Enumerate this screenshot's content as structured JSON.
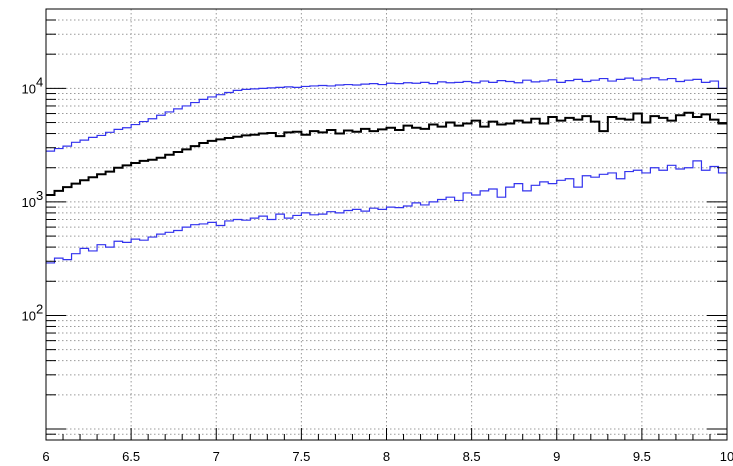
{
  "chart_data": {
    "type": "line",
    "style": "step-histogram",
    "title": "",
    "xlabel": "",
    "ylabel": "",
    "xlim": [
      6,
      10
    ],
    "ylim": [
      8,
      50000
    ],
    "yscale": "log",
    "grid": true,
    "x_ticks": [
      {
        "value": 6,
        "label": "6"
      },
      {
        "value": 6.5,
        "label": "6.5"
      },
      {
        "value": 7,
        "label": "7"
      },
      {
        "value": 7.5,
        "label": "7.5"
      },
      {
        "value": 8,
        "label": "8"
      },
      {
        "value": 8.5,
        "label": "8.5"
      },
      {
        "value": 9,
        "label": "9"
      },
      {
        "value": 9.5,
        "label": "9.5"
      },
      {
        "value": 10,
        "label": "10"
      }
    ],
    "y_ticks": [
      {
        "value": 100,
        "base": "10",
        "exp": "2"
      },
      {
        "value": 1000,
        "base": "10",
        "exp": "3"
      },
      {
        "value": 10000,
        "base": "10",
        "exp": "4"
      }
    ],
    "bin_width": 0.05,
    "series": [
      {
        "color": "#3333ee",
        "values": [
          2800,
          2950,
          3100,
          3350,
          3500,
          3700,
          3850,
          4100,
          4350,
          4500,
          4800,
          5100,
          5400,
          5800,
          6200,
          6600,
          7000,
          7500,
          8000,
          8400,
          8800,
          9200,
          9600,
          9800,
          9900,
          10000,
          10100,
          10200,
          10300,
          10200,
          10400,
          10500,
          10600,
          10500,
          10700,
          10800,
          10700,
          10900,
          11000,
          10800,
          11100,
          11000,
          11200,
          11100,
          11300,
          11000,
          11400,
          11200,
          11300,
          11500,
          11200,
          11600,
          11300,
          11700,
          11500,
          11200,
          11800,
          11400,
          11600,
          11900,
          11300,
          11700,
          12000,
          11500,
          11800,
          12200,
          11600,
          12000,
          12300,
          11800,
          12100,
          12400,
          11900,
          12200,
          11500,
          11800,
          12000,
          11300,
          11600,
          10000
        ]
      },
      {
        "color": "#000000",
        "values": [
          1150,
          1250,
          1350,
          1450,
          1550,
          1650,
          1750,
          1850,
          2000,
          2100,
          2200,
          2300,
          2350,
          2450,
          2600,
          2750,
          2900,
          3100,
          3300,
          3450,
          3550,
          3650,
          3750,
          3850,
          3900,
          4000,
          4050,
          3800,
          4100,
          4150,
          3900,
          4200,
          4100,
          4300,
          4000,
          4250,
          4150,
          4400,
          4200,
          4350,
          4500,
          4300,
          4700,
          4500,
          4400,
          4800,
          4600,
          5000,
          4700,
          4900,
          5200,
          4600,
          5100,
          4800,
          4900,
          5200,
          5000,
          5400,
          4900,
          5600,
          5200,
          5500,
          5300,
          5700,
          5100,
          4200,
          5600,
          5400,
          5300,
          6000,
          5000,
          5700,
          5500,
          5200,
          5800,
          6100,
          5600,
          5900,
          5300,
          4900
        ]
      },
      {
        "color": "#3333ee",
        "values": [
          290,
          320,
          310,
          350,
          390,
          370,
          420,
          400,
          450,
          440,
          470,
          460,
          490,
          520,
          540,
          560,
          600,
          630,
          640,
          660,
          620,
          680,
          700,
          690,
          720,
          750,
          700,
          780,
          720,
          760,
          800,
          770,
          780,
          820,
          800,
          840,
          860,
          830,
          880,
          860,
          900,
          890,
          920,
          980,
          940,
          1000,
          1050,
          1100,
          1030,
          1200,
          1150,
          1250,
          1300,
          1100,
          1350,
          1450,
          1250,
          1400,
          1500,
          1450,
          1550,
          1600,
          1350,
          1700,
          1650,
          1750,
          1800,
          1600,
          1850,
          1900,
          1800,
          2000,
          1900,
          2100,
          1950,
          2000,
          2300,
          1900,
          2050,
          1800
        ]
      }
    ]
  }
}
